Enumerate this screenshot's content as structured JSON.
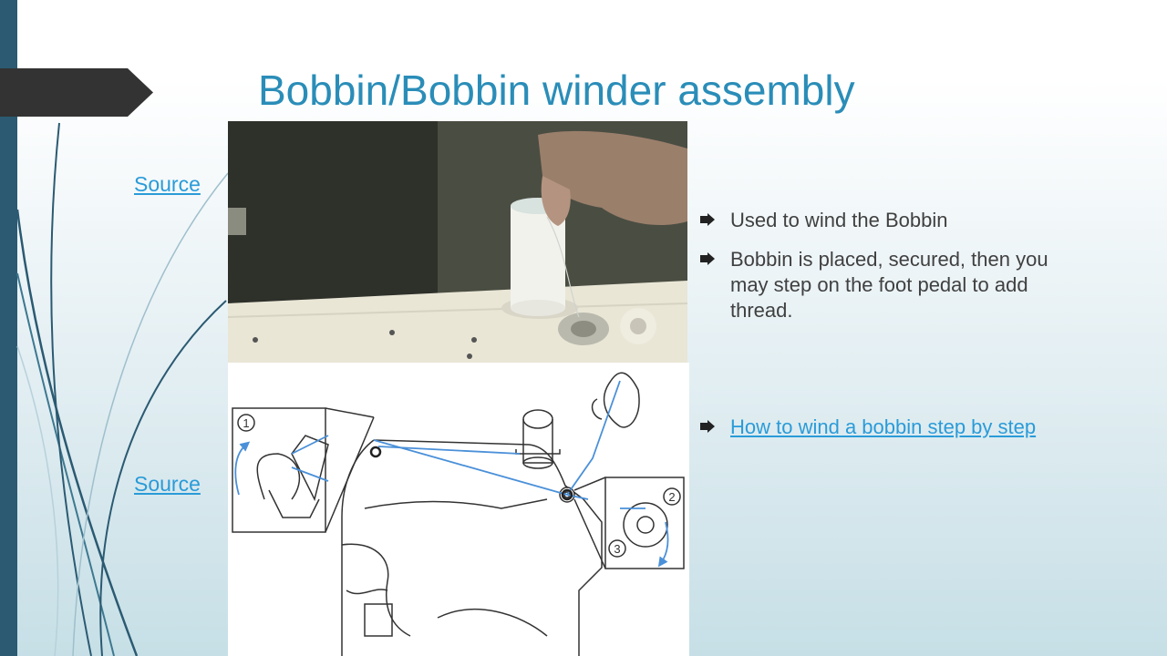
{
  "slide": {
    "title": "Bobbin/Bobbin winder assembly",
    "source_links": [
      "Source",
      "Source"
    ],
    "bullets": [
      "Used to wind the Bobbin",
      "Bobbin is placed, secured, then you may step on the foot pedal to add thread."
    ],
    "link_bullet": "How to wind a bobbin step by step",
    "diagram_labels": [
      "1",
      "2",
      "3"
    ]
  },
  "colors": {
    "accent": "#2a8db8",
    "link": "#2a9bd8",
    "sidebar": "#2b5a72",
    "tab": "#333333",
    "text": "#404040"
  }
}
